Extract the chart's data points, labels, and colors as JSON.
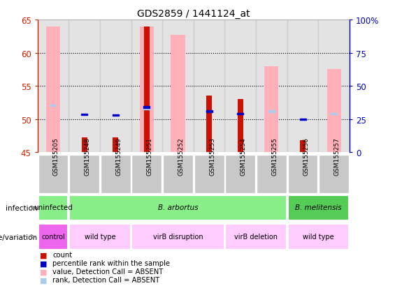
{
  "title": "GDS2859 / 1441124_at",
  "samples": [
    "GSM155205",
    "GSM155248",
    "GSM155249",
    "GSM155251",
    "GSM155252",
    "GSM155253",
    "GSM155254",
    "GSM155255",
    "GSM155256",
    "GSM155257"
  ],
  "ylim": [
    45,
    65
  ],
  "yticks": [
    45,
    50,
    55,
    60,
    65
  ],
  "y2lim": [
    0,
    100
  ],
  "y2ticks": [
    0,
    25,
    50,
    75,
    100
  ],
  "y2ticklabels": [
    "0",
    "25",
    "50",
    "75",
    "100%"
  ],
  "red_bars": [
    null,
    47.2,
    47.2,
    64.0,
    null,
    53.5,
    53.0,
    null,
    46.8,
    null
  ],
  "pink_bars": [
    64.0,
    null,
    null,
    64.0,
    62.7,
    null,
    null,
    58.0,
    null,
    57.5
  ],
  "blue_squares": [
    null,
    50.7,
    50.6,
    51.8,
    null,
    51.2,
    50.8,
    null,
    50.0,
    null
  ],
  "light_blue_squares": [
    52.1,
    null,
    null,
    51.6,
    null,
    null,
    null,
    51.2,
    null,
    50.8
  ],
  "col_bg_color": "#C8C8C8",
  "left_color": "#CC2200",
  "right_color": "#0000BB",
  "red_bar_color": "#CC1100",
  "pink_bar_color": "#FFB0B8",
  "blue_sq_color": "#0000CC",
  "light_blue_sq_color": "#AACCEE",
  "inf_groups": [
    {
      "label": "uninfected",
      "start": 0,
      "end": 0,
      "color": "#88EE88"
    },
    {
      "label": "B. arbortus",
      "start": 1,
      "end": 7,
      "color": "#88EE88"
    },
    {
      "label": "B. melitensis",
      "start": 8,
      "end": 9,
      "color": "#55CC55"
    }
  ],
  "gen_groups": [
    {
      "label": "control",
      "start": 0,
      "end": 0,
      "color": "#EE66EE"
    },
    {
      "label": "wild type",
      "start": 1,
      "end": 2,
      "color": "#FFCCFF"
    },
    {
      "label": "virB disruption",
      "start": 3,
      "end": 5,
      "color": "#FFCCFF"
    },
    {
      "label": "virB deletion",
      "start": 6,
      "end": 7,
      "color": "#FFCCFF"
    },
    {
      "label": "wild type",
      "start": 8,
      "end": 9,
      "color": "#FFCCFF"
    }
  ]
}
